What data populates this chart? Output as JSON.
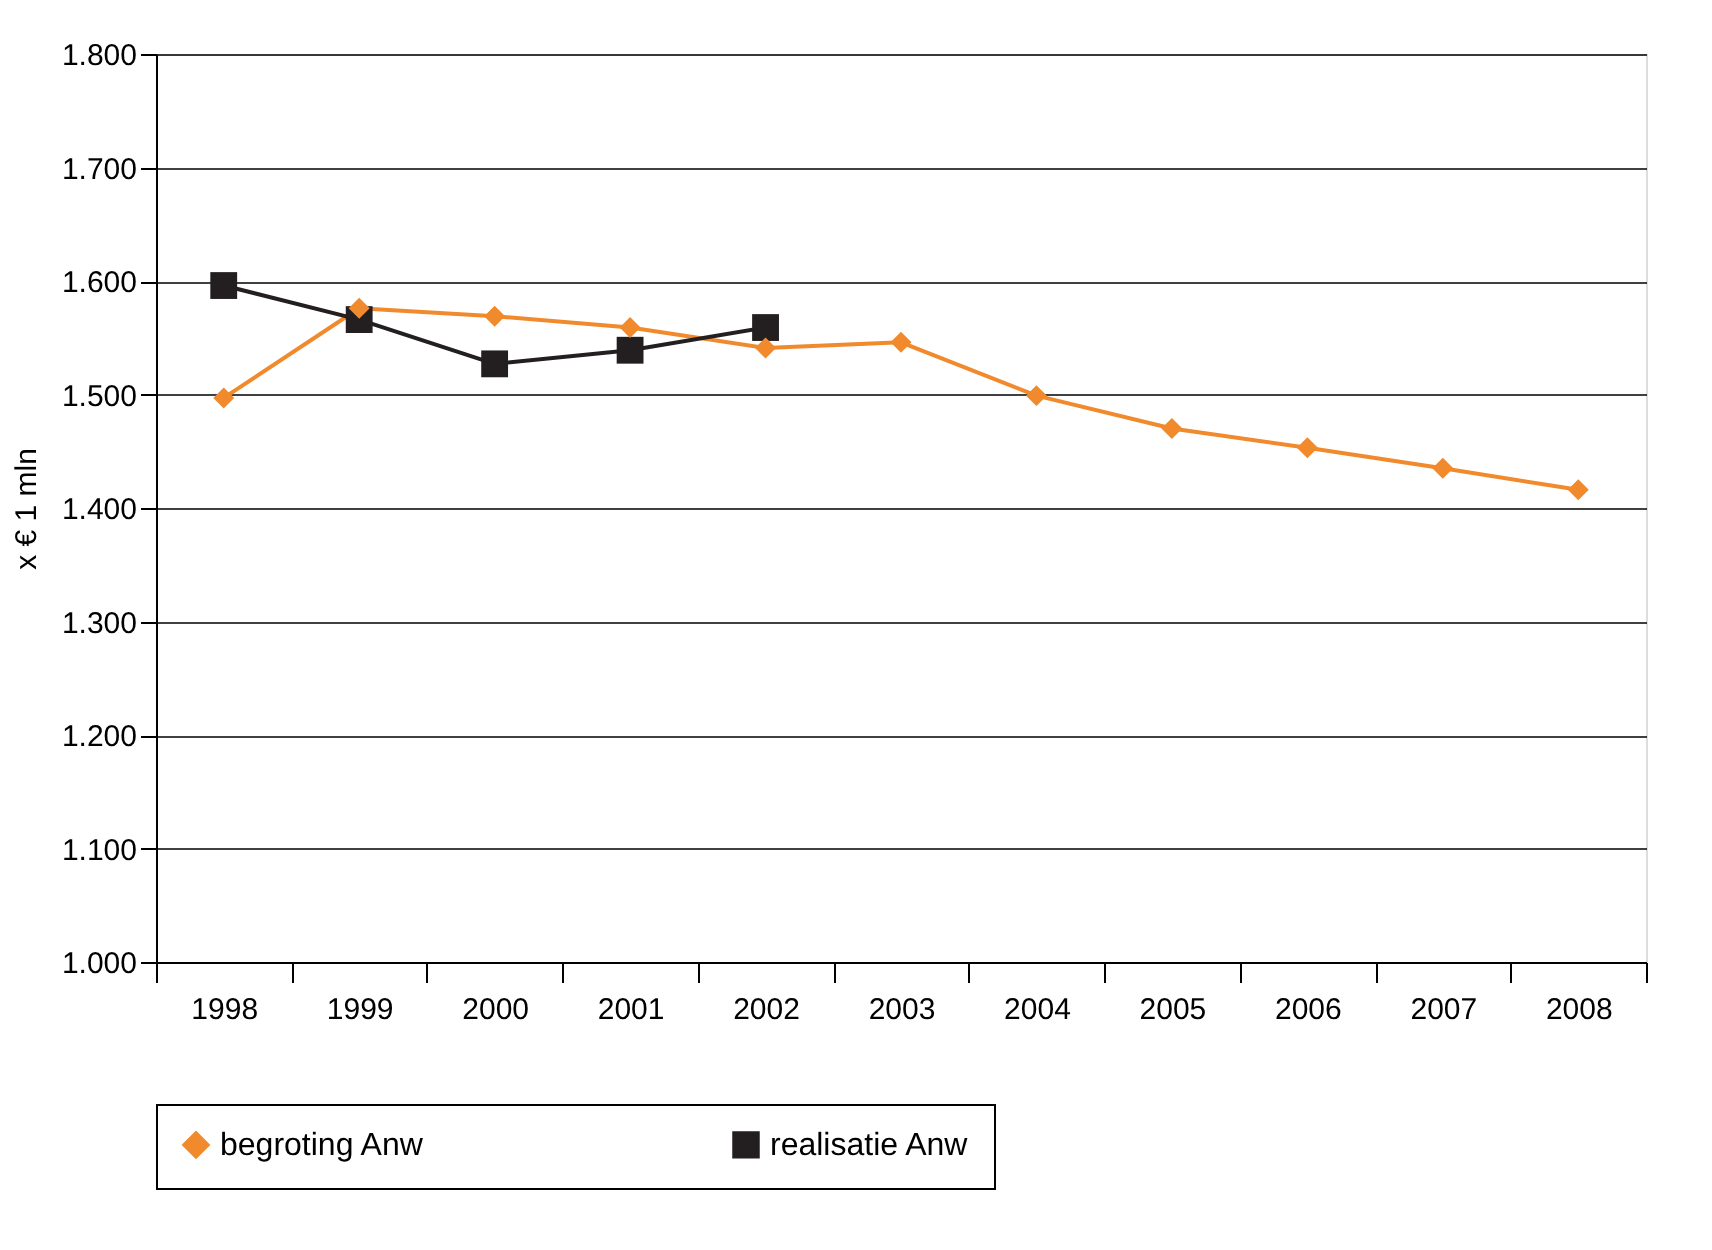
{
  "chart_data": {
    "type": "line",
    "ylabel": "x € 1 mln",
    "categories": [
      "1998",
      "1999",
      "2000",
      "2001",
      "2002",
      "2003",
      "2004",
      "2005",
      "2006",
      "2007",
      "2008"
    ],
    "series": [
      {
        "name": "begroting Anw",
        "color": "#f08a2c",
        "marker": "diamond",
        "values": [
          1497,
          1576,
          1569,
          1559,
          1541,
          1546,
          1499,
          1470,
          1453,
          1435,
          1416
        ]
      },
      {
        "name": "realisatie Anw",
        "color": "#231f20",
        "marker": "square",
        "values": [
          1596,
          1566,
          1527,
          1539,
          1559,
          null,
          null,
          null,
          null,
          null,
          null
        ]
      }
    ],
    "ylim": [
      1000,
      1800
    ],
    "yticks": [
      {
        "value": 1000,
        "label": "1.000"
      },
      {
        "value": 1100,
        "label": "1.100"
      },
      {
        "value": 1200,
        "label": "1.200"
      },
      {
        "value": 1300,
        "label": "1.300"
      },
      {
        "value": 1400,
        "label": "1.400"
      },
      {
        "value": 1500,
        "label": "1.500"
      },
      {
        "value": 1600,
        "label": "1.600"
      },
      {
        "value": 1700,
        "label": "1.700"
      },
      {
        "value": 1800,
        "label": "1.800"
      }
    ],
    "grid": "y",
    "legend": "bottom",
    "line_style": "solid"
  }
}
